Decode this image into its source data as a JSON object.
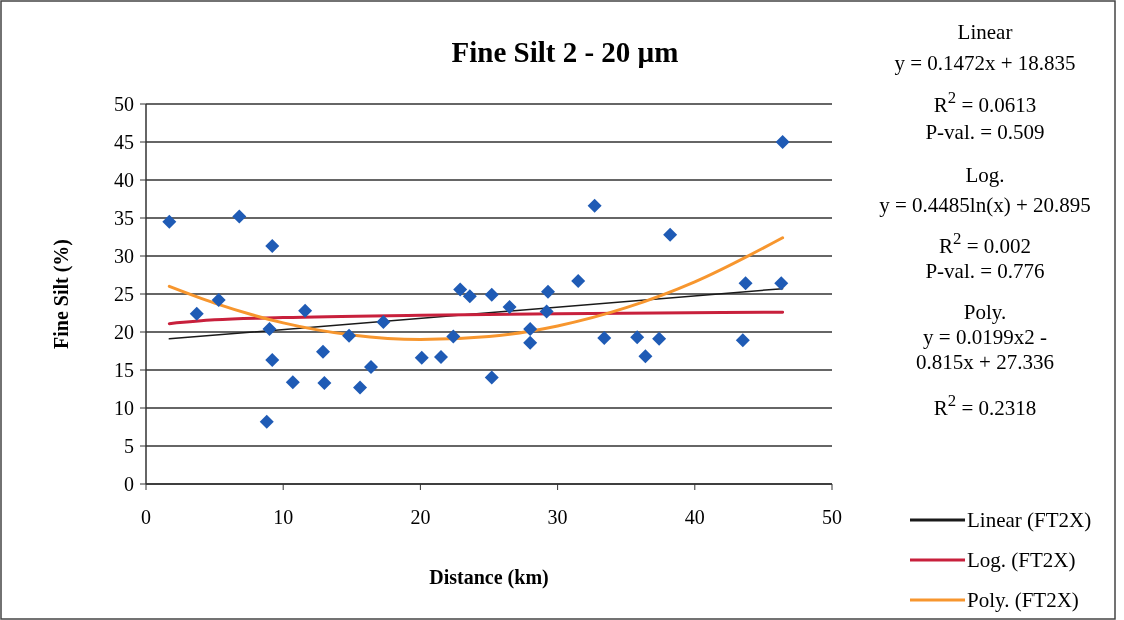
{
  "chart_data": {
    "type": "scatter",
    "title": "Fine Silt 2 - 20 µm",
    "xlabel": "Distance (km)",
    "ylabel": "Fine Silt (%)",
    "xlim": [
      0,
      50
    ],
    "xticks": [
      0,
      10,
      20,
      30,
      40,
      50
    ],
    "ylim": [
      0,
      50
    ],
    "yticks": [
      0,
      5,
      10,
      15,
      20,
      25,
      30,
      35,
      40,
      45,
      50
    ],
    "grid": "y",
    "legend": "right",
    "marker": "diamond",
    "series": [
      {
        "color": "#1f5bb5",
        "x": [
          1.7,
          3.7,
          5.3,
          6.8,
          9.2,
          9.0,
          9.2,
          8.8,
          10.7,
          11.6,
          12.9,
          13.0,
          14.8,
          15.6,
          16.4,
          17.3,
          20.1,
          21.5,
          22.4,
          22.9,
          23.6,
          25.2,
          25.2,
          26.5,
          28.0,
          28.0,
          29.3,
          29.2,
          31.5,
          32.7,
          33.4,
          35.8,
          36.4,
          37.4,
          38.2,
          43.5,
          43.7,
          46.3,
          46.4
        ],
        "values": [
          34.5,
          22.4,
          24.2,
          35.2,
          31.3,
          20.4,
          16.3,
          8.2,
          13.4,
          22.8,
          17.4,
          13.3,
          19.5,
          12.7,
          15.4,
          21.3,
          16.6,
          16.7,
          19.4,
          25.6,
          24.7,
          24.9,
          14.0,
          23.3,
          20.4,
          18.6,
          25.3,
          22.7,
          26.7,
          36.6,
          19.2,
          19.3,
          16.8,
          19.1,
          32.8,
          18.9,
          26.4,
          26.4,
          45.0
        ]
      },
      {
        "type": "line",
        "name": "Linear (FT2X)",
        "color": "#1a1a1a",
        "marker": "none",
        "x": [
          1.7,
          46.4
        ],
        "values": [
          19.1,
          25.7
        ]
      },
      {
        "type": "line",
        "name": "Log. (FT2X)",
        "color": "#c8203c",
        "marker": "none",
        "x": [
          1.7,
          5,
          10,
          20,
          30,
          46.4
        ],
        "values": [
          21.1,
          21.6,
          21.9,
          22.2,
          22.4,
          22.6
        ]
      },
      {
        "type": "line",
        "name": "Poly. (FT2X)",
        "color": "#f7962e",
        "marker": "none",
        "x": [
          1.7,
          5,
          10,
          15,
          20,
          25,
          30,
          35,
          40,
          46.4
        ],
        "values": [
          26.0,
          23.8,
          21.2,
          19.6,
          19.0,
          19.4,
          20.8,
          23.2,
          26.6,
          32.4
        ]
      }
    ],
    "annotations": [
      "Linear",
      "y = 0.1472x + 18.835",
      "R$^{2}$ = 0.0613",
      "P-val. = 0.509",
      "Log.",
      "y = 0.4485ln(x) + 20.895",
      "R$^{2}$ = 0.002",
      "P-val. = 0.776",
      "Poly.",
      "y = 0.0199x2 -",
      "0.815x + 27.336",
      "R$^{2}$ = 0.2318"
    ]
  }
}
